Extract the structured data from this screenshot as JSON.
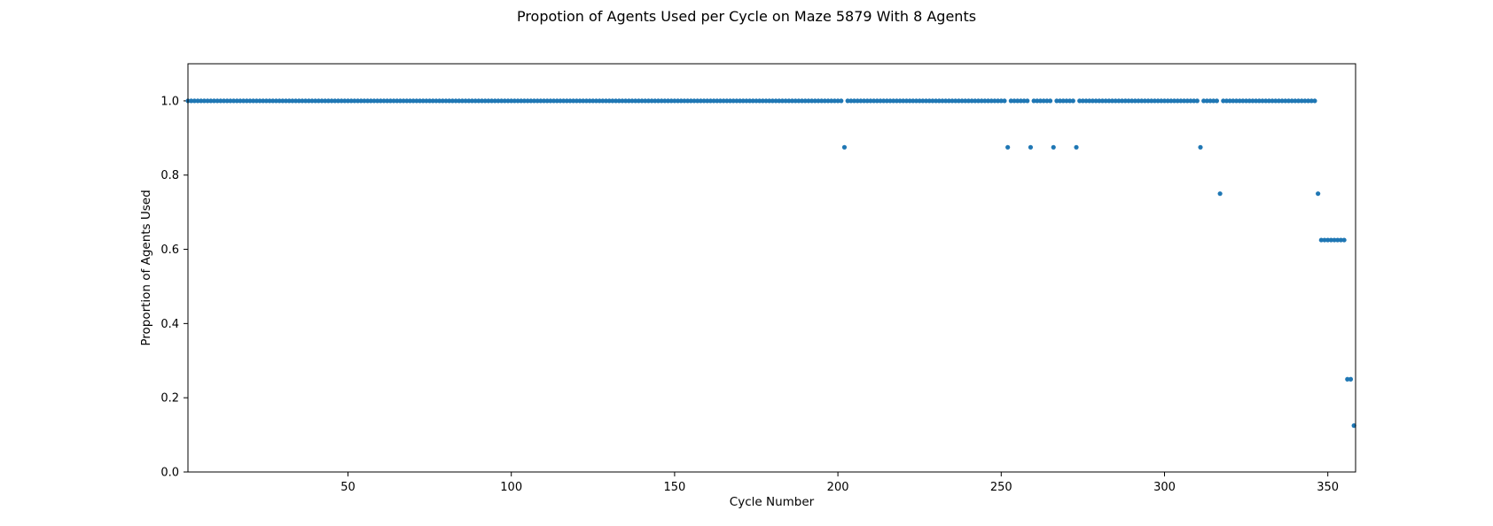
{
  "chart_data": {
    "type": "scatter",
    "title": "Propotion of Agents Used per Cycle on Maze 5879 With 8 Agents",
    "xlabel": "Cycle Number",
    "ylabel": "Proportion of Agents Used",
    "xlim": [
      1,
      358.5
    ],
    "ylim": [
      0.0,
      1.1
    ],
    "xticks": [
      50,
      100,
      150,
      200,
      250,
      300,
      350
    ],
    "yticks": [
      "0.0",
      "0.2",
      "0.4",
      "0.6",
      "0.8",
      "1.0"
    ],
    "grid": false,
    "marker_color": "#1f77b4",
    "default_y": 1.0,
    "x_start": 1,
    "x_end": 358,
    "exceptions": [
      {
        "x": 202,
        "y": 0.875
      },
      {
        "x": 252,
        "y": 0.875
      },
      {
        "x": 259,
        "y": 0.875
      },
      {
        "x": 266,
        "y": 0.875
      },
      {
        "x": 273,
        "y": 0.875
      },
      {
        "x": 311,
        "y": 0.875
      },
      {
        "x": 317,
        "y": 0.75
      },
      {
        "x": 347,
        "y": 0.75
      },
      {
        "x": 348,
        "y": 0.625
      },
      {
        "x": 349,
        "y": 0.625
      },
      {
        "x": 350,
        "y": 0.625
      },
      {
        "x": 351,
        "y": 0.625
      },
      {
        "x": 352,
        "y": 0.625
      },
      {
        "x": 353,
        "y": 0.625
      },
      {
        "x": 354,
        "y": 0.625
      },
      {
        "x": 355,
        "y": 0.625
      },
      {
        "x": 356,
        "y": 0.25
      },
      {
        "x": 357,
        "y": 0.25
      },
      {
        "x": 358,
        "y": 0.125
      }
    ]
  }
}
